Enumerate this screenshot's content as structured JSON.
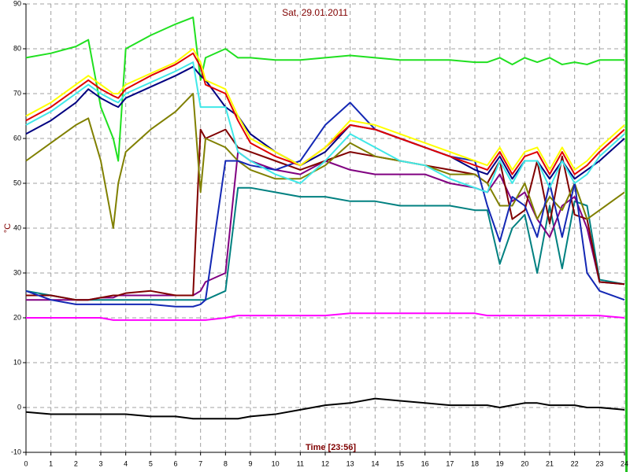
{
  "chart_data": {
    "type": "line",
    "title": "Sat, 29.01.2011",
    "xlabel": "Time [23:56]",
    "ylabel": "°C",
    "x": [
      0,
      1,
      2,
      2.5,
      3,
      3.5,
      3.7,
      4,
      5,
      6,
      6.7,
      7,
      7.2,
      8,
      8.5,
      9,
      10,
      11,
      12,
      13,
      14,
      15,
      16,
      17,
      18,
      18.5,
      19,
      19.5,
      20,
      20.5,
      21,
      21.5,
      22,
      22.5,
      23,
      24
    ],
    "xlim": [
      0,
      24
    ],
    "xticks": [
      0,
      1,
      2,
      3,
      4,
      5,
      6,
      7,
      8,
      9,
      10,
      11,
      12,
      13,
      14,
      15,
      16,
      17,
      18,
      19,
      20,
      21,
      22,
      23,
      24
    ],
    "ylim": [
      -10,
      90
    ],
    "yticks": [
      -10,
      0,
      10,
      20,
      30,
      40,
      50,
      60,
      70,
      80,
      90
    ],
    "grid": true,
    "series": [
      {
        "color": "#000000",
        "values": [
          -1,
          -1.5,
          -1.5,
          -1.5,
          -1.5,
          -1.5,
          -1.5,
          -1.5,
          -2,
          -2,
          -2.5,
          -2.5,
          -2.5,
          -2.5,
          -2.5,
          -2,
          -1.5,
          -0.5,
          0.5,
          1,
          2,
          1.5,
          1,
          0.5,
          0.5,
          0.5,
          0,
          0.5,
          1,
          1,
          0.5,
          0.5,
          0.5,
          0,
          0,
          -0.5
        ]
      },
      {
        "color": "#ff00ff",
        "values": [
          20,
          20,
          20,
          20,
          20,
          19.5,
          19.5,
          19.5,
          19.5,
          19.5,
          19.5,
          19.5,
          19.5,
          20,
          20.5,
          20.5,
          20.5,
          20.5,
          20.5,
          21,
          21,
          21,
          21,
          21,
          21,
          20.5,
          20.5,
          20.5,
          20.5,
          20.5,
          20.5,
          20.5,
          20.5,
          20.5,
          20.5,
          20
        ]
      },
      {
        "color": "#008080",
        "values": [
          26,
          25,
          24,
          24,
          24,
          24,
          24,
          24,
          24,
          24,
          24,
          24,
          24,
          26,
          49,
          49,
          48,
          47,
          47,
          46,
          46,
          45,
          45,
          45,
          44,
          44,
          32,
          40,
          43,
          30,
          45,
          31,
          46,
          45,
          28.5,
          27.5
        ]
      },
      {
        "color": "#800080",
        "values": [
          24,
          24,
          24,
          24,
          24.5,
          24.5,
          25,
          25,
          25,
          25,
          25,
          26,
          28,
          30,
          57,
          55,
          53,
          52,
          55,
          53,
          52,
          52,
          52,
          50,
          49,
          48,
          52,
          46,
          48,
          42,
          38,
          45,
          47,
          40,
          28,
          27.5
        ]
      },
      {
        "color": "#800000",
        "values": [
          25,
          25,
          24,
          24,
          24.5,
          25,
          25,
          25.5,
          26,
          25,
          25,
          62,
          60,
          62,
          58,
          57,
          55,
          53,
          55,
          57,
          56,
          55,
          54,
          53,
          52,
          50,
          55,
          42,
          44,
          55,
          41,
          56,
          43,
          42,
          28,
          27.5
        ]
      },
      {
        "color": "#808000",
        "values": [
          55,
          59,
          63,
          64.5,
          55,
          40,
          50,
          57,
          62,
          66,
          70,
          48,
          60,
          58,
          55,
          53,
          51,
          51,
          54,
          59,
          56,
          55,
          54,
          52,
          52,
          50,
          45,
          45,
          50,
          42,
          47,
          44,
          50,
          42,
          44,
          48
        ]
      },
      {
        "color": "#1428b4",
        "values": [
          26,
          24,
          23,
          23,
          23,
          23,
          23,
          23,
          23,
          22.5,
          22.5,
          23,
          24,
          55,
          55,
          54,
          53,
          55,
          63,
          68,
          62,
          60,
          58,
          56,
          55,
          45,
          37,
          47,
          45,
          38,
          50,
          38,
          50,
          30,
          26,
          24
        ]
      },
      {
        "color": "#20e020",
        "values": [
          78,
          79,
          80.5,
          82,
          67,
          60,
          55,
          80,
          83,
          85.5,
          87,
          73,
          78,
          80,
          78,
          78,
          77.5,
          77.5,
          78,
          78.5,
          78,
          77.5,
          77.5,
          77.5,
          77,
          77,
          78,
          76.5,
          78,
          77,
          78,
          76.5,
          77,
          76.5,
          77.5,
          77.5
        ]
      },
      {
        "color": "#000080",
        "values": [
          61,
          64,
          68,
          71,
          69,
          67.5,
          67,
          69,
          71.5,
          74,
          76,
          74,
          73,
          67,
          65,
          61,
          57,
          54,
          57,
          63,
          62,
          60,
          58,
          56,
          53,
          52,
          56,
          51,
          55,
          55,
          51,
          55,
          51,
          53,
          55,
          60
        ]
      },
      {
        "color": "#40e8e8",
        "values": [
          63,
          66,
          70,
          72,
          70,
          68.5,
          68,
          70,
          72.5,
          75,
          77,
          67,
          67,
          67,
          57,
          55,
          52,
          50,
          55,
          61,
          58,
          55,
          54,
          51,
          49,
          48,
          55,
          50,
          55,
          55,
          49,
          55,
          50,
          52,
          56,
          61
        ]
      },
      {
        "color": "#e00000",
        "values": [
          64,
          67,
          71,
          73,
          71,
          69.5,
          69,
          71,
          74,
          76.5,
          79,
          76,
          72,
          70,
          64,
          59,
          56,
          54,
          58,
          63,
          62,
          60,
          58,
          56,
          54,
          53,
          57,
          52,
          56,
          57,
          52,
          57,
          52,
          54,
          57,
          62
        ]
      },
      {
        "color": "#ffff00",
        "values": [
          65,
          68,
          72,
          74,
          72,
          70,
          70,
          72,
          74.5,
          77,
          80,
          77,
          73,
          71,
          65,
          60,
          57,
          54,
          58,
          64,
          63,
          61,
          59,
          57,
          55,
          54,
          58,
          53,
          57,
          58,
          53,
          58,
          53,
          55,
          58,
          63
        ]
      }
    ]
  }
}
